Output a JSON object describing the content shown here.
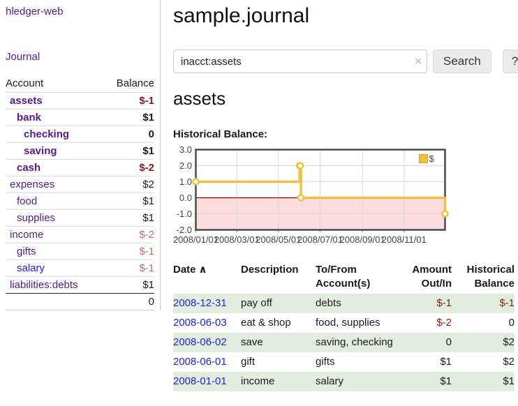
{
  "colors": {
    "accent_purple": "#551a8b",
    "link_blue": "#2222dd",
    "negative_strong": "#8e1717",
    "negative_muted": "#b87272",
    "row_stripe_green": "#e1eede",
    "chart_line_yellow": "#edc240"
  },
  "sidebar": {
    "brand": "hledger-web",
    "journal_link": "Journal",
    "accounts": {
      "col_account": "Account",
      "col_balance": "Balance",
      "rows": [
        {
          "name": "assets",
          "balance": "$-1"
        },
        {
          "name": "bank",
          "balance": "$1"
        },
        {
          "name": "checking",
          "balance": "0"
        },
        {
          "name": "saving",
          "balance": "$1"
        },
        {
          "name": "cash",
          "balance": "$-2"
        },
        {
          "name": "expenses",
          "balance": "$2"
        },
        {
          "name": "food",
          "balance": "$1"
        },
        {
          "name": "supplies",
          "balance": "$1"
        },
        {
          "name": "income",
          "balance": "$-2"
        },
        {
          "name": "gifts",
          "balance": "$-1"
        },
        {
          "name": "salary",
          "balance": "$-1"
        },
        {
          "name": "liabilities:debts",
          "balance": "$1"
        }
      ],
      "total": "0"
    }
  },
  "main": {
    "title": "sample.journal",
    "search": {
      "value": "inacct:assets",
      "clear_icon": "×",
      "search_button": "Search",
      "help_button": "?"
    },
    "heading": "assets",
    "chart_title": "Historical Balance:"
  },
  "chart_data": {
    "type": "line",
    "step": true,
    "title": "Historical Balance",
    "series": [
      {
        "name": "$",
        "color": "#edc240",
        "points": [
          [
            "2008-01-01",
            1
          ],
          [
            "2008-06-01",
            2
          ],
          [
            "2008-06-02",
            2
          ],
          [
            "2008-06-03",
            0
          ],
          [
            "2008-12-31",
            -1
          ]
        ]
      }
    ],
    "xlim": [
      "2008/01/01",
      "2008/12/31"
    ],
    "ylim": [
      -2,
      3
    ],
    "yticks": [
      "3.0",
      "2.0",
      "1.0",
      "0.0",
      "-1.0",
      "-2.0"
    ],
    "xticks": [
      "2008/01/01",
      "2008/03/01",
      "2008/05/01",
      "2008/07/01",
      "2008/09/01",
      "2008/11/01"
    ],
    "legend": {
      "label": "$",
      "position": "top-right"
    },
    "grid": true,
    "zero_line_color": "#8b0000",
    "negative_region_color": "#fbdddd"
  },
  "register": {
    "headers": {
      "date": "Date",
      "date_sort_icon": "∧",
      "description": "Description",
      "tofrom": "To/From Account(s)",
      "amount": "Amount Out/In",
      "balance": "Historical Balance"
    },
    "rows": [
      {
        "date": "2008-12-31",
        "description": "pay off",
        "accounts": "debts",
        "amount": "$-1",
        "balance": "$-1"
      },
      {
        "date": "2008-06-03",
        "description": "eat & shop",
        "accounts": "food, supplies",
        "amount": "$-2",
        "balance": "0"
      },
      {
        "date": "2008-06-02",
        "description": "save",
        "accounts": "saving, checking",
        "amount": "0",
        "balance": "$2"
      },
      {
        "date": "2008-06-01",
        "description": "gift",
        "accounts": "gifts",
        "amount": "$1",
        "balance": "$2"
      },
      {
        "date": "2008-01-01",
        "description": "income",
        "accounts": "salary",
        "amount": "$1",
        "balance": "$1"
      }
    ]
  }
}
